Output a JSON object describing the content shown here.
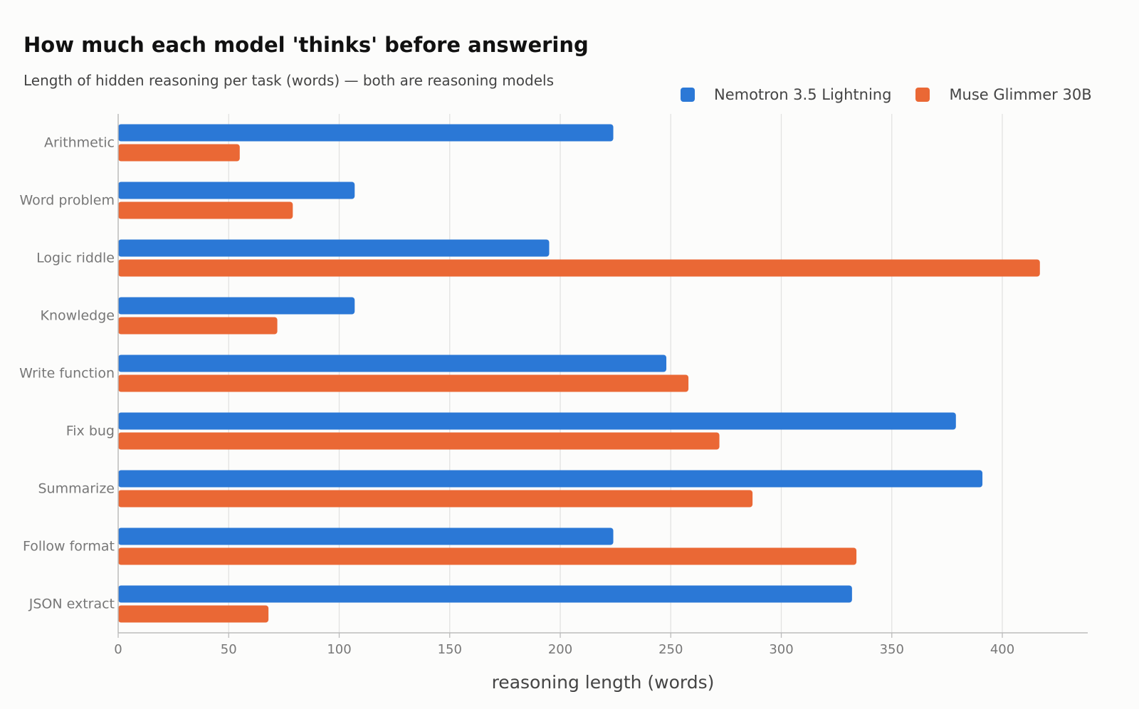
{
  "chart_data": {
    "type": "bar",
    "orientation": "horizontal",
    "title": "How much each model 'thinks' before answering",
    "subtitle": "Length of hidden reasoning per task (words) — both are reasoning models",
    "xlabel": "reasoning length (words)",
    "ylabel": "",
    "xlim": [
      0,
      440
    ],
    "xticks": [
      0,
      50,
      100,
      150,
      200,
      250,
      300,
      350,
      400
    ],
    "grid": "vertical",
    "legend_position": "top-right",
    "categories": [
      "Arithmetic",
      "Word problem",
      "Logic riddle",
      "Knowledge",
      "Write function",
      "Fix bug",
      "Summarize",
      "Follow format",
      "JSON extract"
    ],
    "series": [
      {
        "name": "Nemotron 3.5 Lightning",
        "color": "#2b78d6",
        "values": [
          224,
          107,
          195,
          107,
          248,
          379,
          391,
          224,
          332
        ]
      },
      {
        "name": "Muse Glimmer 30B",
        "color": "#ea6835",
        "values": [
          55,
          79,
          417,
          72,
          258,
          272,
          287,
          334,
          68
        ]
      }
    ]
  }
}
